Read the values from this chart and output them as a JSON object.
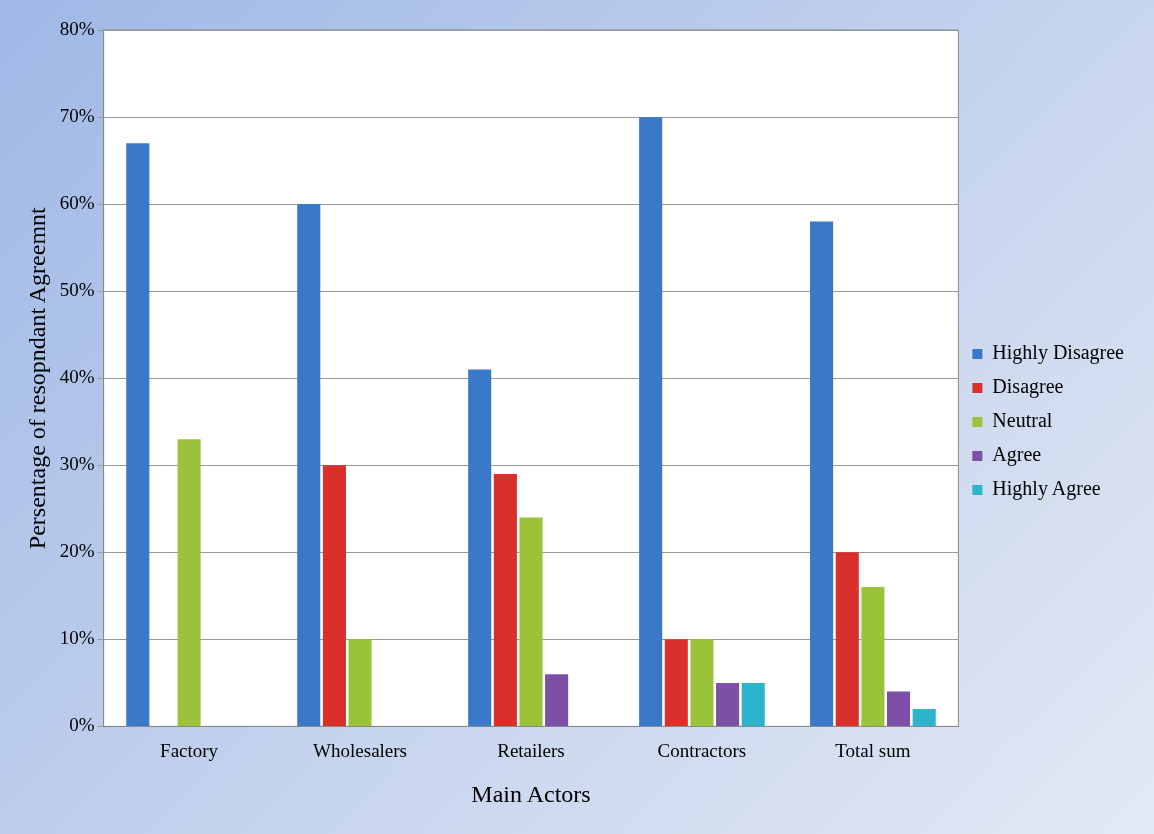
{
  "chart_data": {
    "type": "bar",
    "xlabel": "Main Actors",
    "ylabel": "Persentage of resopndant Agreemnt",
    "categories": [
      "Factory",
      "Wholesalers",
      "Retailers",
      "Contractors",
      "Total sum"
    ],
    "series": [
      {
        "name": "Highly Disagree",
        "color": "#3a78c9",
        "values": [
          67,
          60,
          41,
          70,
          58
        ]
      },
      {
        "name": "Disagree",
        "color": "#d9302b",
        "values": [
          0,
          30,
          29,
          10,
          20
        ]
      },
      {
        "name": "Neutral",
        "color": "#9ac33a",
        "values": [
          33,
          10,
          24,
          10,
          16
        ]
      },
      {
        "name": "Agree",
        "color": "#7d4fa6",
        "values": [
          0,
          0,
          6,
          5,
          4
        ]
      },
      {
        "name": "Highly Agree",
        "color": "#2cb4cc",
        "values": [
          0,
          0,
          0,
          5,
          2
        ]
      }
    ],
    "ylim": [
      0,
      80
    ],
    "yticks": [
      {
        "value": 0,
        "label": "0%"
      },
      {
        "value": 10,
        "label": "10%"
      },
      {
        "value": 20,
        "label": "20%"
      },
      {
        "value": 30,
        "label": "30%"
      },
      {
        "value": 40,
        "label": "40%"
      },
      {
        "value": 50,
        "label": "50%"
      },
      {
        "value": 60,
        "label": "60%"
      },
      {
        "value": 70,
        "label": "70%"
      },
      {
        "value": 80,
        "label": "80%"
      }
    ],
    "grid": "y",
    "legend": "right"
  }
}
